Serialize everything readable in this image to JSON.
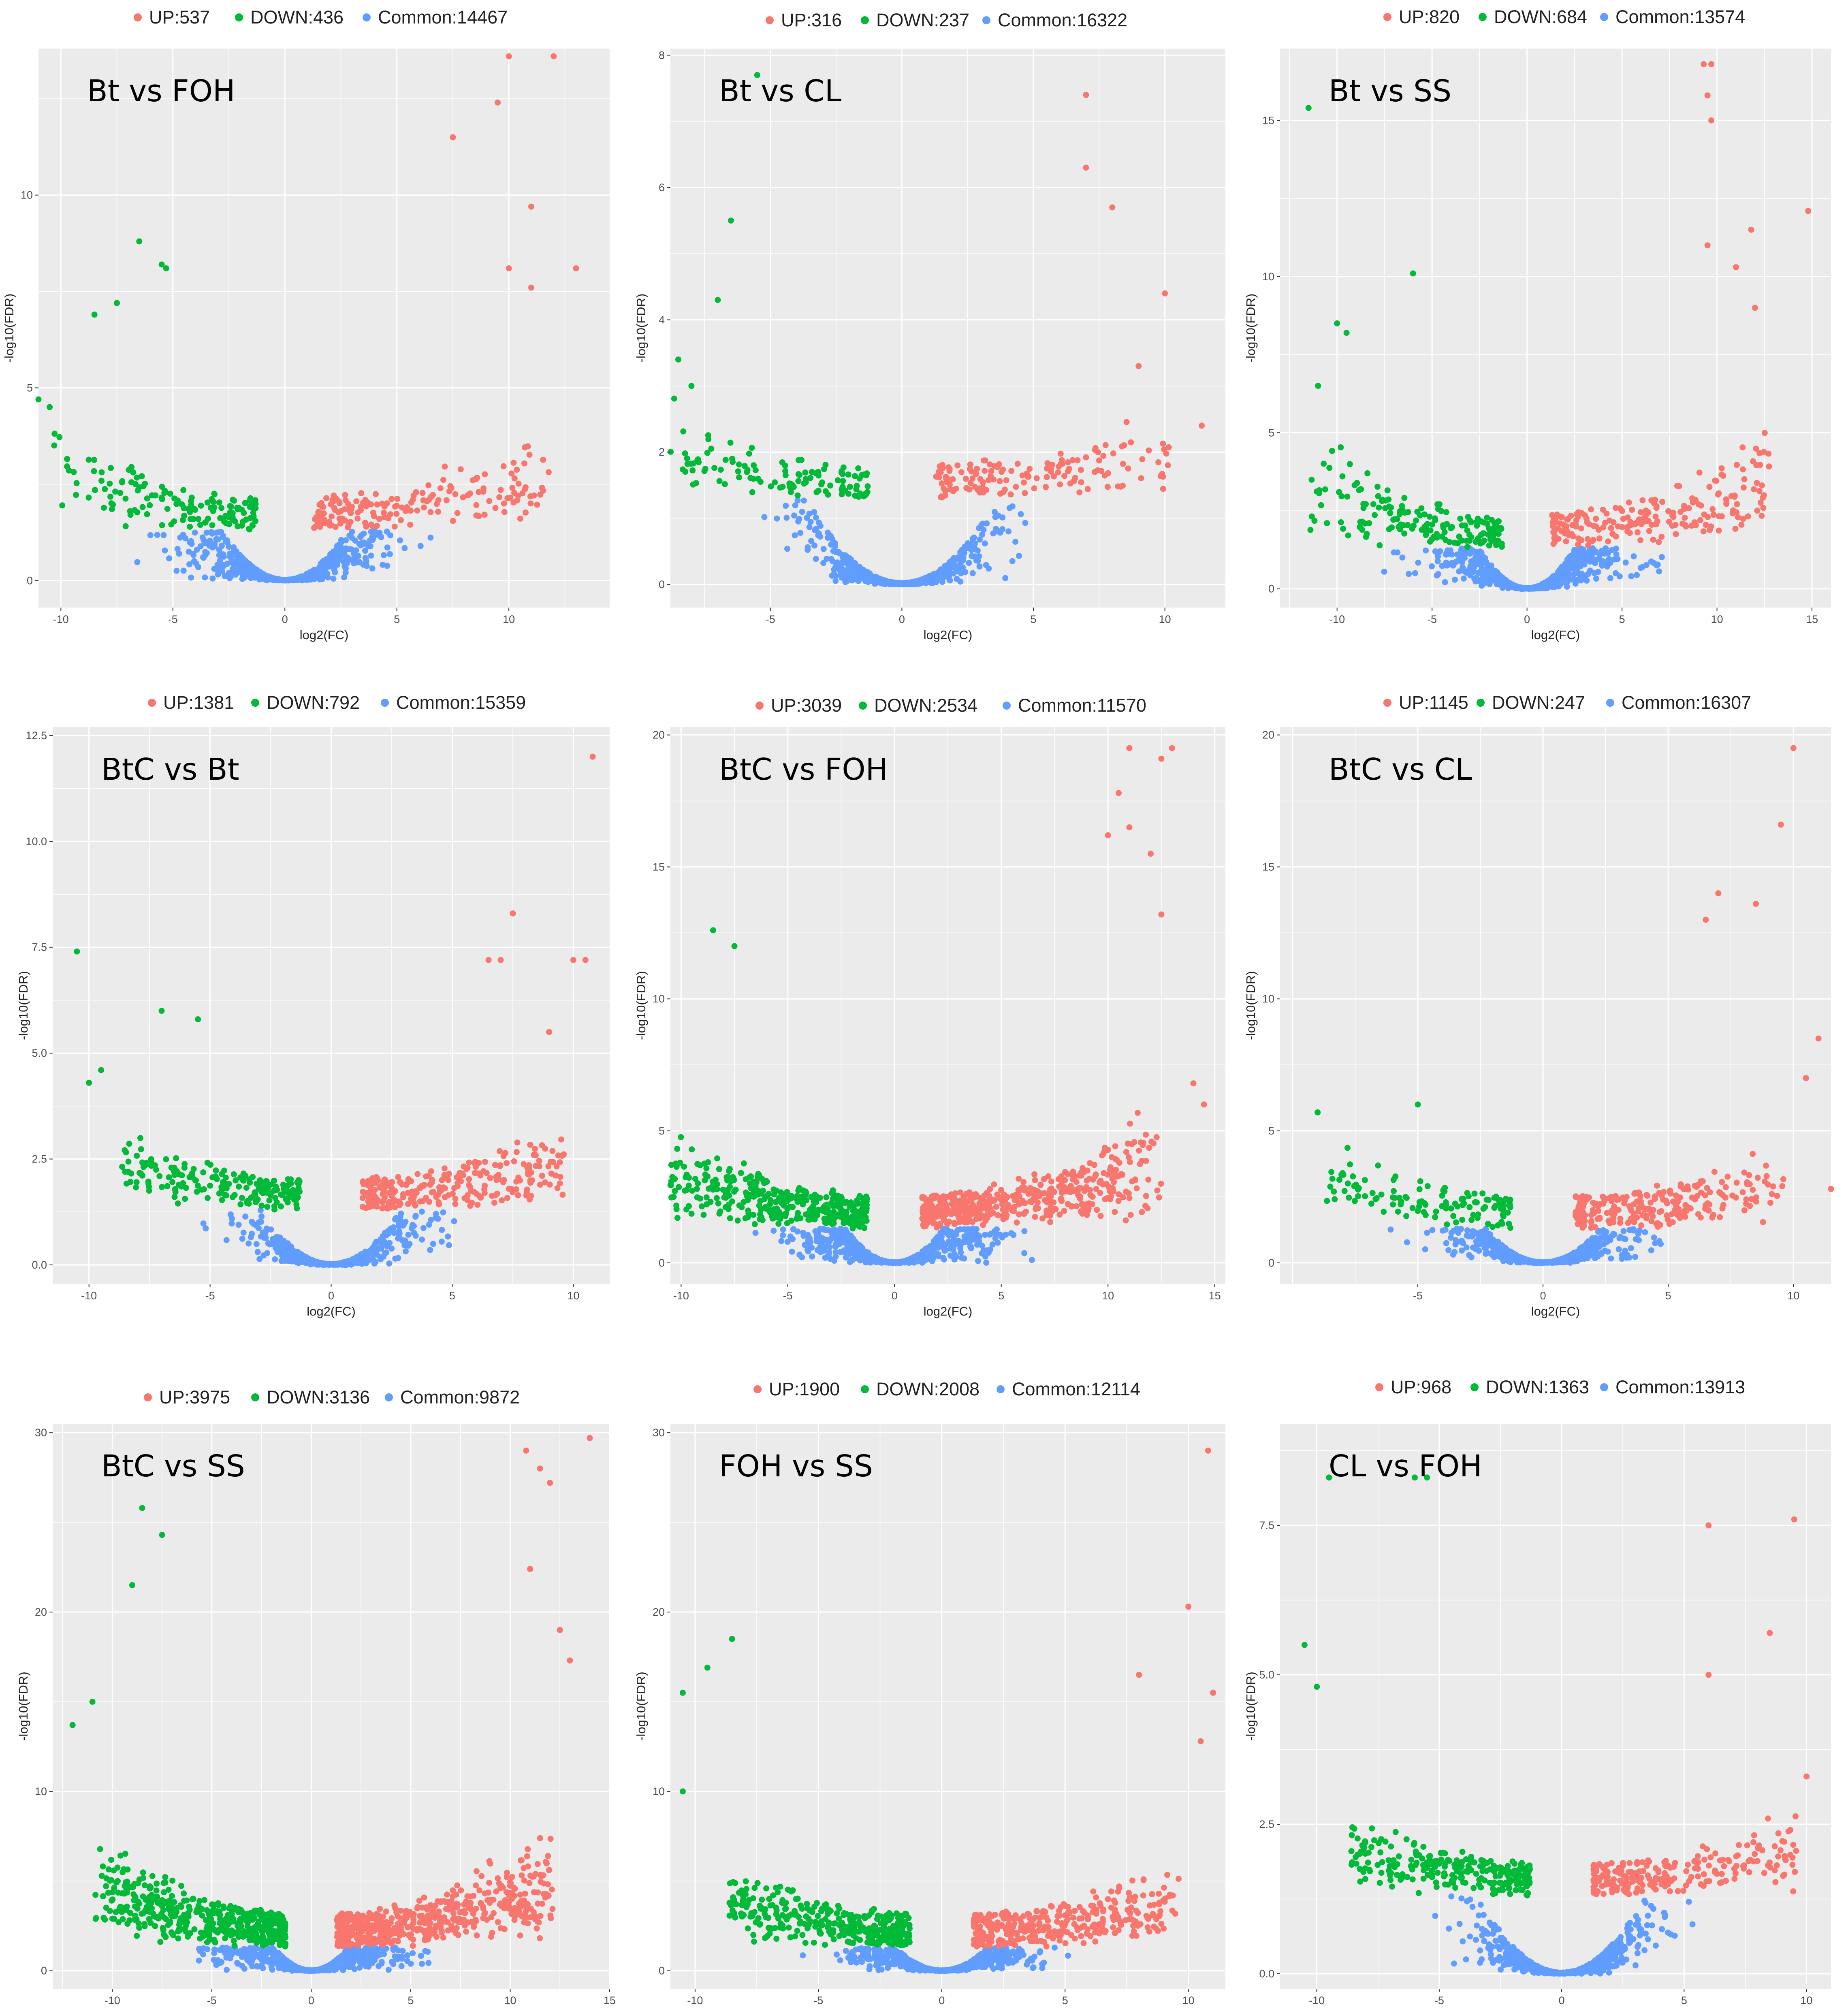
{
  "colors": {
    "up": "#f8766d",
    "down": "#00ba38",
    "common": "#619cff",
    "panel": "#ebebeb",
    "grid": "#ffffff"
  },
  "chart_data": [
    {
      "type": "scatter",
      "title": "Bt vs FOH",
      "xlabel": "log2(FC)",
      "ylabel": "-log10(FDR)",
      "legend": {
        "up": "UP:537",
        "down": "DOWN:436",
        "common": "Common:14467"
      },
      "xlim": [
        -11,
        14.5
      ],
      "ylim": [
        -0.7,
        13.8
      ],
      "xticks": [
        -10,
        -5,
        0,
        5,
        10
      ],
      "yticks": [
        0,
        5,
        10
      ],
      "ytick_labels": [
        "0",
        "5",
        "10"
      ],
      "up_count": 537,
      "down_count": 436,
      "common_count": 14467,
      "threshold": 1.3,
      "extreme_up": [
        [
          10,
          13.6
        ],
        [
          12,
          13.6
        ],
        [
          9.5,
          12.4
        ],
        [
          7.5,
          11.5
        ],
        [
          11,
          9.7
        ],
        [
          13,
          8.1
        ],
        [
          10,
          8.1
        ],
        [
          11,
          7.6
        ]
      ],
      "extreme_down": [
        [
          -10.5,
          4.5
        ],
        [
          -11,
          4.7
        ],
        [
          -6.5,
          8.8
        ],
        [
          -5.5,
          8.2
        ],
        [
          -5.3,
          8.1
        ],
        [
          -8.5,
          6.9
        ],
        [
          -7.5,
          7.2
        ]
      ]
    },
    {
      "type": "scatter",
      "title": "Bt vs CL",
      "xlabel": "log2(FC)",
      "ylabel": "-log10(FDR)",
      "legend": {
        "up": "UP:316",
        "down": "DOWN:237",
        "common": "Common:16322"
      },
      "xlim": [
        -8.8,
        12.3
      ],
      "ylim": [
        -0.35,
        8.1
      ],
      "xticks": [
        -5,
        0,
        5,
        10
      ],
      "yticks": [
        0,
        2,
        4,
        6,
        8
      ],
      "ytick_labels": [
        "0",
        "2",
        "4",
        "6",
        "8"
      ],
      "up_count": 316,
      "down_count": 237,
      "common_count": 16322,
      "threshold": 1.3,
      "extreme_up": [
        [
          7,
          7.4
        ],
        [
          7,
          6.3
        ],
        [
          8,
          5.7
        ],
        [
          10,
          4.4
        ],
        [
          11.4,
          2.4
        ],
        [
          9,
          3.3
        ]
      ],
      "extreme_down": [
        [
          -5.5,
          7.7
        ],
        [
          -6.5,
          5.5
        ],
        [
          -7,
          4.3
        ],
        [
          -8.5,
          3.4
        ],
        [
          -8,
          3.0
        ]
      ]
    },
    {
      "type": "scatter",
      "title": "Bt vs SS",
      "xlabel": "log2(FC)",
      "ylabel": "-log10(FDR)",
      "legend": {
        "up": "UP:820",
        "down": "DOWN:684",
        "common": "Common:13574"
      },
      "xlim": [
        -13,
        16
      ],
      "ylim": [
        -0.6,
        17.3
      ],
      "xticks": [
        -10,
        -5,
        0,
        5,
        10,
        15
      ],
      "yticks": [
        0,
        5,
        10,
        15
      ],
      "ytick_labels": [
        "0",
        "5",
        "10",
        "15"
      ],
      "up_count": 820,
      "down_count": 684,
      "common_count": 13574,
      "threshold": 1.3,
      "extreme_up": [
        [
          9.3,
          16.8
        ],
        [
          9.7,
          16.8
        ],
        [
          9.5,
          15.8
        ],
        [
          9.7,
          15.0
        ],
        [
          14.8,
          12.1
        ],
        [
          11.8,
          11.5
        ],
        [
          9.5,
          11.0
        ],
        [
          11,
          10.3
        ],
        [
          12,
          9.0
        ]
      ],
      "extreme_down": [
        [
          -11.5,
          15.4
        ],
        [
          -6,
          10.1
        ],
        [
          -10,
          8.5
        ],
        [
          -9.5,
          8.2
        ],
        [
          -11,
          6.5
        ]
      ]
    },
    {
      "type": "scatter",
      "title": "BtC vs Bt",
      "xlabel": "log2(FC)",
      "ylabel": "-log10(FDR)",
      "legend": {
        "up": "UP:1381",
        "down": "DOWN:792",
        "common": "Common:15359"
      },
      "xlim": [
        -11.5,
        11.5
      ],
      "ylim": [
        -0.45,
        12.7
      ],
      "xticks": [
        -10,
        -5,
        0,
        5,
        10
      ],
      "yticks": [
        0,
        2.5,
        5,
        7.5,
        10,
        12.5
      ],
      "ytick_labels": [
        "0.0",
        "2.5",
        "5.0",
        "7.5",
        "10.0",
        "12.5"
      ],
      "up_count": 1381,
      "down_count": 792,
      "common_count": 15359,
      "threshold": 1.3,
      "extreme_up": [
        [
          10.8,
          12.0
        ],
        [
          7.5,
          8.3
        ],
        [
          10,
          7.2
        ],
        [
          10.5,
          7.2
        ],
        [
          6.5,
          7.2
        ],
        [
          7,
          7.2
        ],
        [
          9,
          5.5
        ]
      ],
      "extreme_down": [
        [
          -10.5,
          7.4
        ],
        [
          -10,
          4.3
        ],
        [
          -7,
          6.0
        ],
        [
          -5.5,
          5.8
        ],
        [
          -9.5,
          4.6
        ]
      ]
    },
    {
      "type": "scatter",
      "title": "BtC vs FOH",
      "xlabel": "log2(FC)",
      "ylabel": "-log10(FDR)",
      "legend": {
        "up": "UP:3039",
        "down": "DOWN:2534",
        "common": "Common:11570"
      },
      "xlim": [
        -10.5,
        15.5
      ],
      "ylim": [
        -0.8,
        20.3
      ],
      "xticks": [
        -10,
        -5,
        0,
        5,
        10,
        15
      ],
      "yticks": [
        0,
        5,
        10,
        15,
        20
      ],
      "ytick_labels": [
        "0",
        "5",
        "10",
        "15",
        "20"
      ],
      "up_count": 3039,
      "down_count": 2534,
      "common_count": 11570,
      "threshold": 1.3,
      "extreme_up": [
        [
          11,
          19.5
        ],
        [
          13,
          19.5
        ],
        [
          12.5,
          19.1
        ],
        [
          10.5,
          17.8
        ],
        [
          11,
          16.5
        ],
        [
          12,
          15.5
        ],
        [
          10,
          16.2
        ],
        [
          12.5,
          13.2
        ],
        [
          14,
          6.8
        ],
        [
          14.5,
          6.0
        ]
      ],
      "extreme_down": [
        [
          -8.5,
          12.6
        ],
        [
          -7.5,
          12.0
        ],
        [
          -9.5,
          4.3
        ]
      ]
    },
    {
      "type": "scatter",
      "title": "BtC vs CL",
      "xlabel": "log2(FC)",
      "ylabel": "-log10(FDR)",
      "legend": {
        "up": "UP:1145",
        "down": "DOWN:247",
        "common": "Common:16307"
      },
      "xlim": [
        -10.5,
        11.5
      ],
      "ylim": [
        -0.8,
        20.3
      ],
      "xticks": [
        -5,
        0,
        5,
        10
      ],
      "yticks": [
        0,
        5,
        10,
        15,
        20
      ],
      "ytick_labels": [
        "0",
        "5",
        "10",
        "15",
        "20"
      ],
      "up_count": 1145,
      "down_count": 247,
      "common_count": 16307,
      "threshold": 1.3,
      "extreme_up": [
        [
          10,
          19.5
        ],
        [
          9.5,
          16.6
        ],
        [
          7,
          14.0
        ],
        [
          8.5,
          13.6
        ],
        [
          6.5,
          13.0
        ],
        [
          11,
          8.5
        ],
        [
          10.5,
          7.0
        ],
        [
          11.5,
          2.8
        ]
      ],
      "extreme_down": [
        [
          -9,
          5.7
        ],
        [
          -5,
          6.0
        ],
        [
          -8,
          3.4
        ]
      ]
    },
    {
      "type": "scatter",
      "title": "BtC vs SS",
      "xlabel": "log2(FC)",
      "ylabel": "-log10(FDR)",
      "legend": {
        "up": "UP:3975",
        "down": "DOWN:3136",
        "common": "Common:9872"
      },
      "xlim": [
        -13,
        15
      ],
      "ylim": [
        -1,
        30.5
      ],
      "xticks": [
        -10,
        -5,
        0,
        5,
        10,
        15
      ],
      "yticks": [
        0,
        10,
        20,
        30
      ],
      "ytick_labels": [
        "0",
        "10",
        "20",
        "30"
      ],
      "up_count": 3975,
      "down_count": 3136,
      "common_count": 9872,
      "threshold": 1.3,
      "extreme_up": [
        [
          14,
          29.7
        ],
        [
          10.8,
          29.0
        ],
        [
          11.5,
          28.0
        ],
        [
          12,
          27.2
        ],
        [
          12.5,
          19.0
        ],
        [
          13,
          17.3
        ],
        [
          11,
          22.4
        ]
      ],
      "extreme_down": [
        [
          -8.5,
          25.8
        ],
        [
          -9,
          21.5
        ],
        [
          -7.5,
          24.3
        ],
        [
          -12,
          13.7
        ],
        [
          -11,
          15.0
        ]
      ]
    },
    {
      "type": "scatter",
      "title": "FOH vs SS",
      "xlabel": "log2(FC)",
      "ylabel": "-log10(FDR)",
      "legend": {
        "up": "UP:1900",
        "down": "DOWN:2008",
        "common": "Common:12114"
      },
      "xlim": [
        -11,
        11.5
      ],
      "ylim": [
        -1,
        30.5
      ],
      "xticks": [
        -10,
        -5,
        0,
        5,
        10
      ],
      "yticks": [
        0,
        10,
        20,
        30
      ],
      "ytick_labels": [
        "0",
        "10",
        "20",
        "30"
      ],
      "up_count": 1900,
      "down_count": 2008,
      "common_count": 12114,
      "threshold": 1.3,
      "extreme_up": [
        [
          10.8,
          29.0
        ],
        [
          10,
          20.3
        ],
        [
          11,
          15.5
        ],
        [
          8,
          16.5
        ],
        [
          10.5,
          12.8
        ]
      ],
      "extreme_down": [
        [
          -10.5,
          15.5
        ],
        [
          -8.5,
          18.5
        ],
        [
          -9.5,
          16.9
        ],
        [
          -10.5,
          10.0
        ]
      ]
    },
    {
      "type": "scatter",
      "title": "CL vs FOH",
      "xlabel": "log2(FC)",
      "ylabel": "-log10(FDR)",
      "legend": {
        "up": "UP:968",
        "down": "DOWN:1363",
        "common": "Common:13913"
      },
      "xlim": [
        -11.5,
        11
      ],
      "ylim": [
        -0.25,
        9.2
      ],
      "xticks": [
        -10,
        -5,
        0,
        5,
        10
      ],
      "yticks": [
        0,
        2.5,
        5,
        7.5
      ],
      "ytick_labels": [
        "0.0",
        "2.5",
        "5.0",
        "7.5"
      ],
      "up_count": 968,
      "down_count": 1363,
      "common_count": 13913,
      "threshold": 1.3,
      "extreme_up": [
        [
          9.5,
          7.6
        ],
        [
          6,
          7.5
        ],
        [
          8.5,
          5.7
        ],
        [
          10,
          3.3
        ],
        [
          6,
          5.0
        ]
      ],
      "extreme_down": [
        [
          -9.5,
          8.3
        ],
        [
          -6,
          8.3
        ],
        [
          -5.5,
          8.3
        ],
        [
          -10.5,
          5.5
        ],
        [
          -10,
          4.8
        ]
      ]
    }
  ]
}
